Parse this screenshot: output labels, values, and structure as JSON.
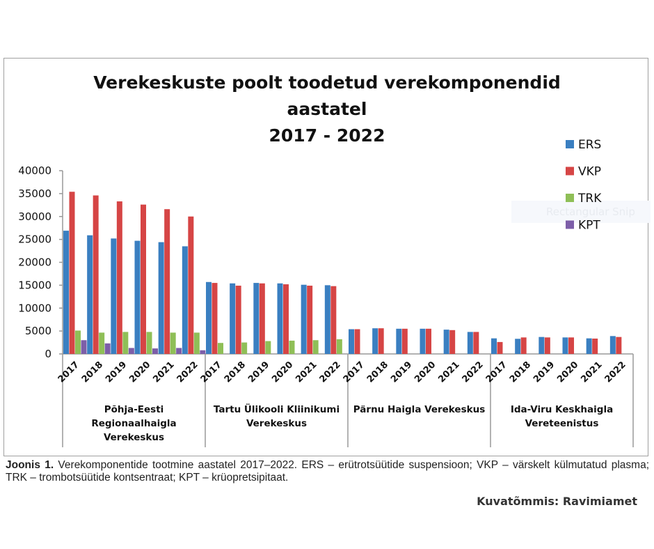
{
  "chart_data": {
    "type": "bar",
    "title": [
      "Verekeskuste poolt toodetud verekomponendid",
      "aastatel",
      "2017 - 2022"
    ],
    "ylim": [
      0,
      40000
    ],
    "yticks": [
      "0",
      "5000",
      "10000",
      "15000",
      "20000",
      "25000",
      "30000",
      "35000",
      "40000"
    ],
    "grid": false,
    "legend_position": "right",
    "groups": [
      {
        "name": "Põhja-Eesti Regionaalhaigla Verekeskus",
        "label_lines": [
          "Põhja-Eesti",
          "Regionaalhaigla",
          "Verekeskus"
        ]
      },
      {
        "name": "Tartu Ülikooli Kliinikumi Verekeskus",
        "label_lines": [
          "Tartu Ülikooli Kliinikumi",
          "Verekeskus"
        ]
      },
      {
        "name": "Pärnu Haigla Verekeskus",
        "label_lines": [
          "Pärnu Haigla Verekeskus"
        ]
      },
      {
        "name": "Ida-Viru Keskhaigla Vereteenistus",
        "label_lines": [
          "Ida-Viru Keskhaigla",
          "Vereteenistus"
        ]
      }
    ],
    "years": [
      "2017",
      "2018",
      "2019",
      "2020",
      "2021",
      "2022"
    ],
    "series": [
      {
        "name": "ERS",
        "color": "#3a7fc1",
        "values": [
          [
            26900,
            25900,
            25200,
            24700,
            24400,
            23500
          ],
          [
            15700,
            15400,
            15500,
            15400,
            15100,
            15000
          ],
          [
            5400,
            5600,
            5500,
            5500,
            5300,
            4800
          ],
          [
            3400,
            3300,
            3700,
            3600,
            3400,
            3900
          ]
        ]
      },
      {
        "name": "VKP",
        "color": "#d64545",
        "values": [
          [
            35400,
            34600,
            33300,
            32600,
            31600,
            30000
          ],
          [
            15500,
            14900,
            15400,
            15200,
            14900,
            14800
          ],
          [
            5400,
            5600,
            5500,
            5500,
            5200,
            4800
          ],
          [
            2600,
            3600,
            3600,
            3600,
            3350,
            3700
          ]
        ]
      },
      {
        "name": "TRK",
        "color": "#8fbf57",
        "values": [
          [
            5100,
            4650,
            4800,
            4800,
            4650,
            4650
          ],
          [
            2400,
            2500,
            2800,
            2900,
            3000,
            3200
          ],
          [
            0,
            0,
            0,
            0,
            0,
            0
          ],
          [
            0,
            0,
            0,
            0,
            0,
            0
          ]
        ]
      },
      {
        "name": "KPT",
        "color": "#7d5ea8",
        "values": [
          [
            3000,
            2300,
            1300,
            1200,
            1300,
            800
          ],
          [
            0,
            0,
            0,
            0,
            0,
            0
          ],
          [
            0,
            0,
            0,
            0,
            0,
            0
          ],
          [
            0,
            0,
            0,
            0,
            0,
            0
          ]
        ]
      }
    ]
  },
  "caption": {
    "label": "Joonis 1.",
    "text": " Verekomponentide tootmine aastatel 2017–2022. ERS – erütrotsüütide suspensioon; VKP – värskelt külmutatud plasma; TRK – trombotsüütide kontsentraat; KPT – krüopretsipitaat."
  },
  "credit": "Kuvatõmmis: Ravimiamet",
  "overlay": "Rectangular Snip"
}
